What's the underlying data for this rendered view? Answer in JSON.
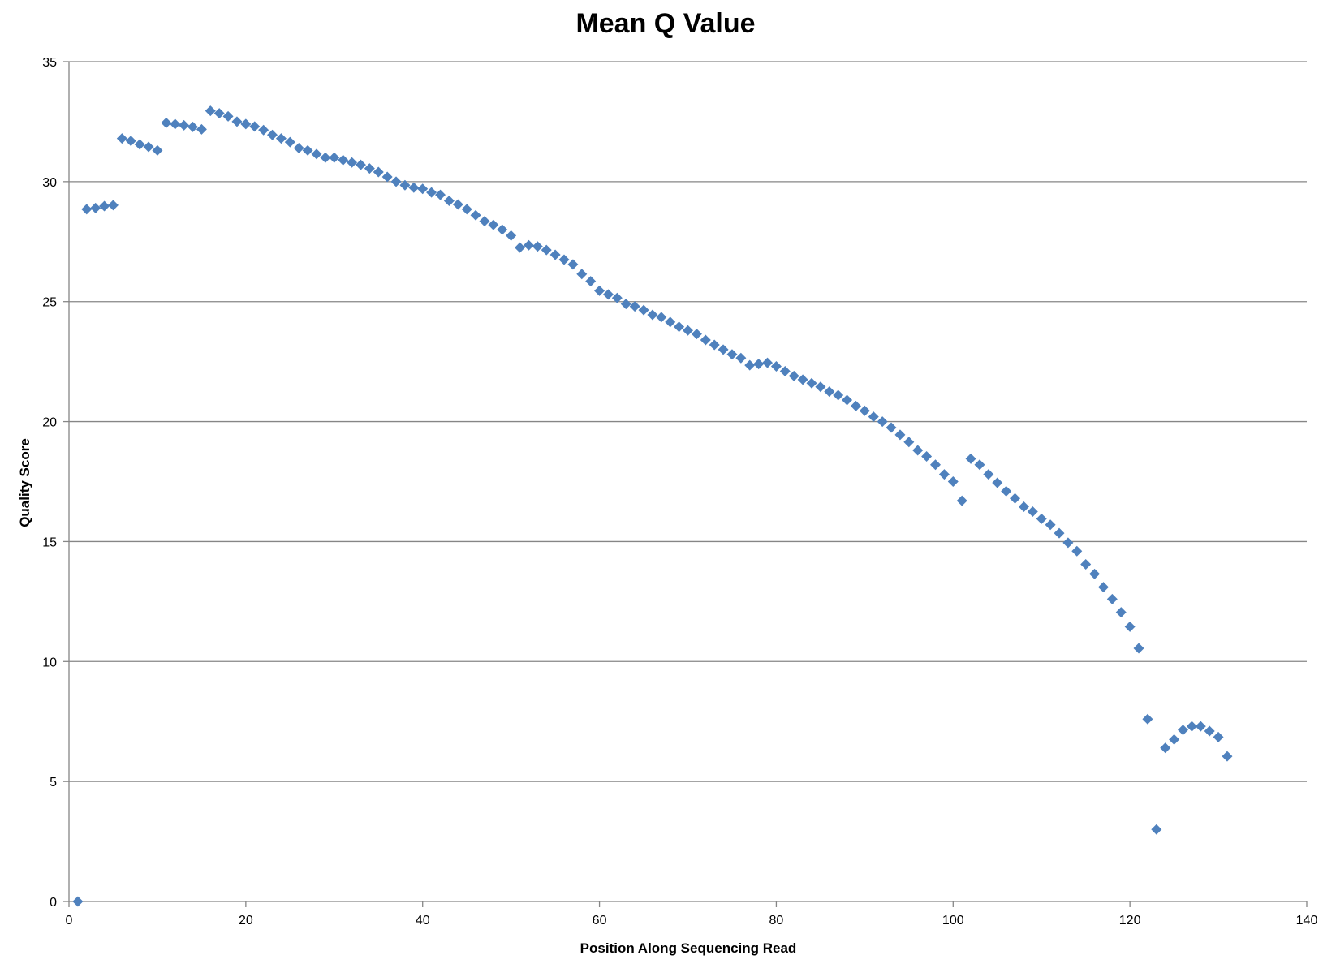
{
  "chart_data": {
    "type": "scatter",
    "title": "Mean Q Value",
    "xlabel": "Position Along Sequencing Read",
    "ylabel": "Quality Score",
    "xlim": [
      0,
      140
    ],
    "ylim": [
      0,
      35
    ],
    "x_ticks": [
      0,
      20,
      40,
      60,
      80,
      100,
      120,
      140
    ],
    "y_ticks": [
      0,
      5,
      10,
      15,
      20,
      25,
      30,
      35
    ],
    "x_tick_labels": [
      "0",
      "20",
      "40",
      "60",
      "80",
      "100",
      "120",
      "140"
    ],
    "y_tick_labels": [
      "0",
      "5",
      "10",
      "15",
      "20",
      "25",
      "30",
      "35"
    ],
    "grid": "horizontal major gridlines",
    "legend": "none",
    "marker": "diamond",
    "colors": {
      "marker": "#4f81bd",
      "gridline": "#868686",
      "axis": "#868686"
    },
    "series": [
      {
        "x": [
          1,
          2,
          3,
          4,
          5,
          6,
          7,
          8,
          9,
          10,
          11,
          12,
          13,
          14,
          15,
          16,
          17,
          18,
          19,
          20,
          21,
          22,
          23,
          24,
          25,
          26,
          27,
          28,
          29,
          30,
          31,
          32,
          33,
          34,
          35,
          36,
          37,
          38,
          39,
          40,
          41,
          42,
          43,
          44,
          45,
          46,
          47,
          48,
          49,
          50,
          51,
          52,
          53,
          54,
          55,
          56,
          57,
          58,
          59,
          60,
          61,
          62,
          63,
          64,
          65,
          66,
          67,
          68,
          69,
          70,
          71,
          72,
          73,
          74,
          75,
          76,
          77,
          78,
          79,
          80,
          81,
          82,
          83,
          84,
          85,
          86,
          87,
          88,
          89,
          90,
          91,
          92,
          93,
          94,
          95,
          96,
          97,
          98,
          99,
          100,
          101,
          102,
          103,
          104,
          105,
          106,
          107,
          108,
          109,
          110,
          111,
          112,
          113,
          114,
          115,
          116,
          117,
          118,
          119,
          120,
          121,
          122,
          123,
          124,
          125,
          126,
          127,
          128,
          129,
          130,
          131
        ],
        "y": [
          0.0,
          28.85,
          28.9,
          28.98,
          29.02,
          31.8,
          31.7,
          31.55,
          31.45,
          31.3,
          32.45,
          32.4,
          32.35,
          32.28,
          32.18,
          32.95,
          32.85,
          32.72,
          32.5,
          32.4,
          32.3,
          32.15,
          31.95,
          31.8,
          31.65,
          31.4,
          31.3,
          31.15,
          31.0,
          31.0,
          30.9,
          30.8,
          30.7,
          30.55,
          30.4,
          30.2,
          30.0,
          29.85,
          29.75,
          29.7,
          29.55,
          29.45,
          29.2,
          29.05,
          28.85,
          28.6,
          28.35,
          28.2,
          28.0,
          27.75,
          27.25,
          27.35,
          27.3,
          27.15,
          26.95,
          26.75,
          26.55,
          26.15,
          25.85,
          25.45,
          25.3,
          25.15,
          24.9,
          24.8,
          24.65,
          24.45,
          24.35,
          24.15,
          23.95,
          23.8,
          23.65,
          23.4,
          23.2,
          23.0,
          22.8,
          22.65,
          22.35,
          22.4,
          22.45,
          22.3,
          22.1,
          21.9,
          21.75,
          21.6,
          21.45,
          21.25,
          21.1,
          20.9,
          20.65,
          20.45,
          20.2,
          20.0,
          19.75,
          19.45,
          19.15,
          18.8,
          18.55,
          18.2,
          17.8,
          17.5,
          16.7,
          18.45,
          18.2,
          17.8,
          17.45,
          17.1,
          16.8,
          16.45,
          16.25,
          15.95,
          15.7,
          15.35,
          14.95,
          14.6,
          14.05,
          13.65,
          13.1,
          12.6,
          12.05,
          11.45,
          10.55,
          7.6,
          3.0,
          6.4,
          6.75,
          7.15,
          7.3,
          7.3,
          7.1,
          6.85,
          6.05
        ]
      }
    ]
  }
}
